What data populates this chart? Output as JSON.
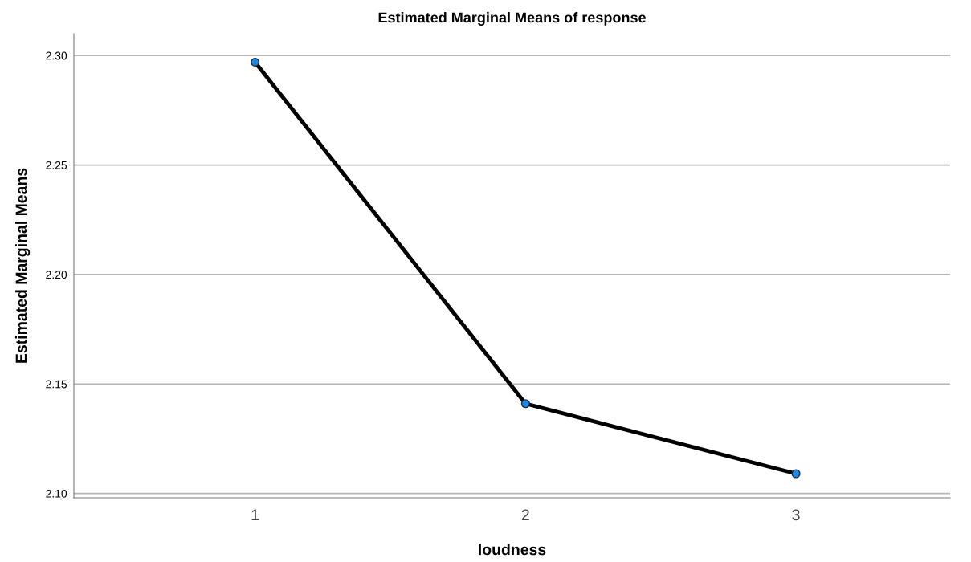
{
  "chart_data": {
    "type": "line",
    "title": "Estimated Marginal Means of response",
    "xlabel": "loudness",
    "ylabel": "Estimated Marginal Means",
    "categories": [
      "1",
      "2",
      "3"
    ],
    "series": [
      {
        "color": "#000000",
        "values": [
          2.297,
          2.141,
          2.109
        ]
      }
    ],
    "marker": "circle",
    "line_style": "solid",
    "ylim": [
      2.098,
      2.31
    ],
    "yticks": [
      {
        "value": 2.1,
        "label": "2.10"
      },
      {
        "value": 2.15,
        "label": "2.15"
      },
      {
        "value": 2.2,
        "label": "2.20"
      },
      {
        "value": 2.25,
        "label": "2.25"
      },
      {
        "value": 2.3,
        "label": "2.30"
      }
    ],
    "grid": "y",
    "legend": false
  }
}
